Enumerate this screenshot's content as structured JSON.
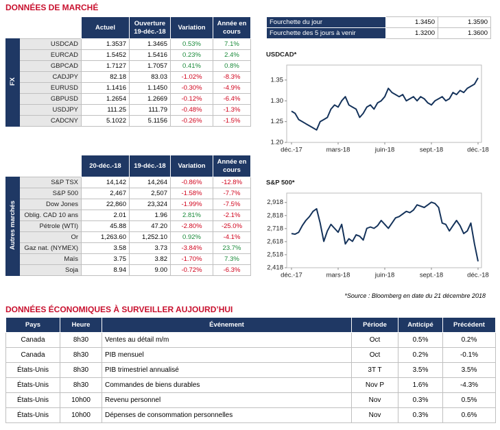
{
  "market_title": "DONNÉES DE MARCHÉ",
  "fx_table": {
    "side_label": "FX",
    "headers": [
      "Actuel",
      "Ouverture 19-déc.-18",
      "Variation",
      "Année en cours"
    ],
    "rows": [
      [
        "USDCAD",
        "1.3537",
        "1.3465",
        "0.53%",
        "7.1%"
      ],
      [
        "EURCAD",
        "1.5452",
        "1.5416",
        "0.23%",
        "2.4%"
      ],
      [
        "GBPCAD",
        "1.7127",
        "1.7057",
        "0.41%",
        "0.8%"
      ],
      [
        "CADJPY",
        "82.18",
        "83.03",
        "-1.02%",
        "-8.3%"
      ],
      [
        "EURUSD",
        "1.1416",
        "1.1450",
        "-0.30%",
        "-4.9%"
      ],
      [
        "GBPUSD",
        "1.2654",
        "1.2669",
        "-0.12%",
        "-6.4%"
      ],
      [
        "USDJPY",
        "111.25",
        "111.79",
        "-0.48%",
        "-1.3%"
      ],
      [
        "CADCNY",
        "5.1022",
        "5.1156",
        "-0.26%",
        "-1.5%"
      ]
    ]
  },
  "other_table": {
    "side_label": "Autres marchés",
    "headers": [
      "20-déc.-18",
      "19-déc.-18",
      "Variation",
      "Année en cours"
    ],
    "rows": [
      [
        "S&P TSX",
        "14,142",
        "14,264",
        "-0.86%",
        "-12.8%"
      ],
      [
        "S&P 500",
        "2,467",
        "2,507",
        "-1.58%",
        "-7.7%"
      ],
      [
        "Dow Jones",
        "22,860",
        "23,324",
        "-1.99%",
        "-7.5%"
      ],
      [
        "Oblig. CAD 10 ans",
        "2.01",
        "1.96",
        "2.81%",
        "-2.1%"
      ],
      [
        "Pétrole (WTI)",
        "45.88",
        "47.20",
        "-2.80%",
        "-25.0%"
      ],
      [
        "Or",
        "1,263.60",
        "1,252.10",
        "0.92%",
        "-4.1%"
      ],
      [
        "Gaz nat. (NYMEX)",
        "3.58",
        "3.73",
        "-3.84%",
        "23.7%"
      ],
      [
        "Maïs",
        "3.75",
        "3.82",
        "-1.70%",
        "7.3%"
      ],
      [
        "Soja",
        "8.94",
        "9.00",
        "-0.72%",
        "-6.3%"
      ]
    ]
  },
  "range_table": {
    "rows": [
      [
        "Fourchette du jour",
        "1.3450",
        "1.3590"
      ],
      [
        "Fourchette des 5 jours à venir",
        "1.3200",
        "1.3600"
      ]
    ]
  },
  "chart_data": [
    {
      "type": "line",
      "title": "USDCAD*",
      "color": "#14325a",
      "categories": [
        "déc.-17",
        null,
        null,
        null,
        null,
        null,
        null,
        null,
        null,
        null,
        null,
        null,
        null,
        "mars-18",
        null,
        null,
        null,
        null,
        null,
        null,
        null,
        null,
        null,
        null,
        null,
        null,
        "juin-18",
        null,
        null,
        null,
        null,
        null,
        null,
        null,
        null,
        null,
        null,
        null,
        null,
        "sept.-18",
        null,
        null,
        null,
        null,
        null,
        null,
        null,
        null,
        null,
        null,
        null,
        null,
        "déc.-18"
      ],
      "values": [
        1.275,
        1.27,
        1.255,
        1.25,
        1.245,
        1.24,
        1.235,
        1.23,
        1.25,
        1.255,
        1.26,
        1.28,
        1.29,
        1.285,
        1.3,
        1.31,
        1.29,
        1.285,
        1.28,
        1.26,
        1.27,
        1.285,
        1.29,
        1.28,
        1.295,
        1.3,
        1.31,
        1.33,
        1.32,
        1.315,
        1.31,
        1.315,
        1.3,
        1.305,
        1.31,
        1.3,
        1.31,
        1.305,
        1.295,
        1.29,
        1.3,
        1.305,
        1.31,
        1.3,
        1.305,
        1.32,
        1.315,
        1.325,
        1.32,
        1.33,
        1.335,
        1.34,
        1.355
      ],
      "ylim": [
        1.2,
        1.386
      ],
      "yticks": [
        {
          "value": 1.2,
          "label": "1.20"
        },
        1.25,
        {
          "value": 1.3,
          "label": "1.30"
        },
        1.35
      ]
    },
    {
      "type": "line",
      "title": "S&P 500*",
      "color": "#14325a",
      "categories": [
        "déc.-17",
        null,
        null,
        null,
        null,
        null,
        null,
        null,
        null,
        null,
        null,
        null,
        null,
        "mars-18",
        null,
        null,
        null,
        null,
        null,
        null,
        null,
        null,
        null,
        null,
        null,
        null,
        "juin-18",
        null,
        null,
        null,
        null,
        null,
        null,
        null,
        null,
        null,
        null,
        null,
        null,
        "sept.-18",
        null,
        null,
        null,
        null,
        null,
        null,
        null,
        null,
        null,
        null,
        null,
        null,
        "déc.-18"
      ],
      "values": [
        2680,
        2675,
        2690,
        2740,
        2780,
        2810,
        2850,
        2870,
        2760,
        2620,
        2700,
        2750,
        2720,
        2690,
        2750,
        2600,
        2640,
        2620,
        2670,
        2660,
        2630,
        2720,
        2730,
        2720,
        2740,
        2780,
        2750,
        2720,
        2760,
        2800,
        2810,
        2830,
        2850,
        2840,
        2860,
        2900,
        2890,
        2880,
        2900,
        2920,
        2910,
        2880,
        2760,
        2750,
        2700,
        2740,
        2780,
        2740,
        2680,
        2700,
        2760,
        2600,
        2467
      ],
      "ylim": [
        2418,
        2990
      ],
      "yticks": [
        {
          "value": 2418,
          "label": "2,418"
        },
        {
          "value": 2518,
          "label": "2,518"
        },
        {
          "value": 2618,
          "label": "2,618"
        },
        {
          "value": 2718,
          "label": "2,718"
        },
        {
          "value": 2818,
          "label": "2,818"
        },
        {
          "value": 2918,
          "label": "2,918"
        }
      ]
    }
  ],
  "source_note": "*Source : Bloomberg en date du  21 décembre 2018",
  "econ_title": "DONNÉES ÉCONOMIQUES À SURVEILLER AUJOURD’HUI",
  "econ_table": {
    "headers": [
      "Pays",
      "Heure",
      "Événement",
      "Période",
      "Anticipé",
      "Précédent"
    ],
    "rows": [
      [
        "Canada",
        "8h30",
        "Ventes au détail m/m",
        "Oct",
        "0.5%",
        "0.2%"
      ],
      [
        "Canada",
        "8h30",
        "PIB mensuel",
        "Oct",
        "0.2%",
        "-0.1%"
      ],
      [
        "États-Unis",
        "8h30",
        "PIB trimestriel annualisé",
        "3T T",
        "3.5%",
        "3.5%"
      ],
      [
        "États-Unis",
        "8h30",
        "Commandes de biens durables",
        "Nov P",
        "1.6%",
        "-4.3%"
      ],
      [
        "États-Unis",
        "10h00",
        "Revenu personnel",
        "Nov",
        "0.3%",
        "0.5%"
      ],
      [
        "États-Unis",
        "10h00",
        "Dépenses de consommation personnelles",
        "Nov",
        "0.3%",
        "0.6%"
      ]
    ]
  }
}
